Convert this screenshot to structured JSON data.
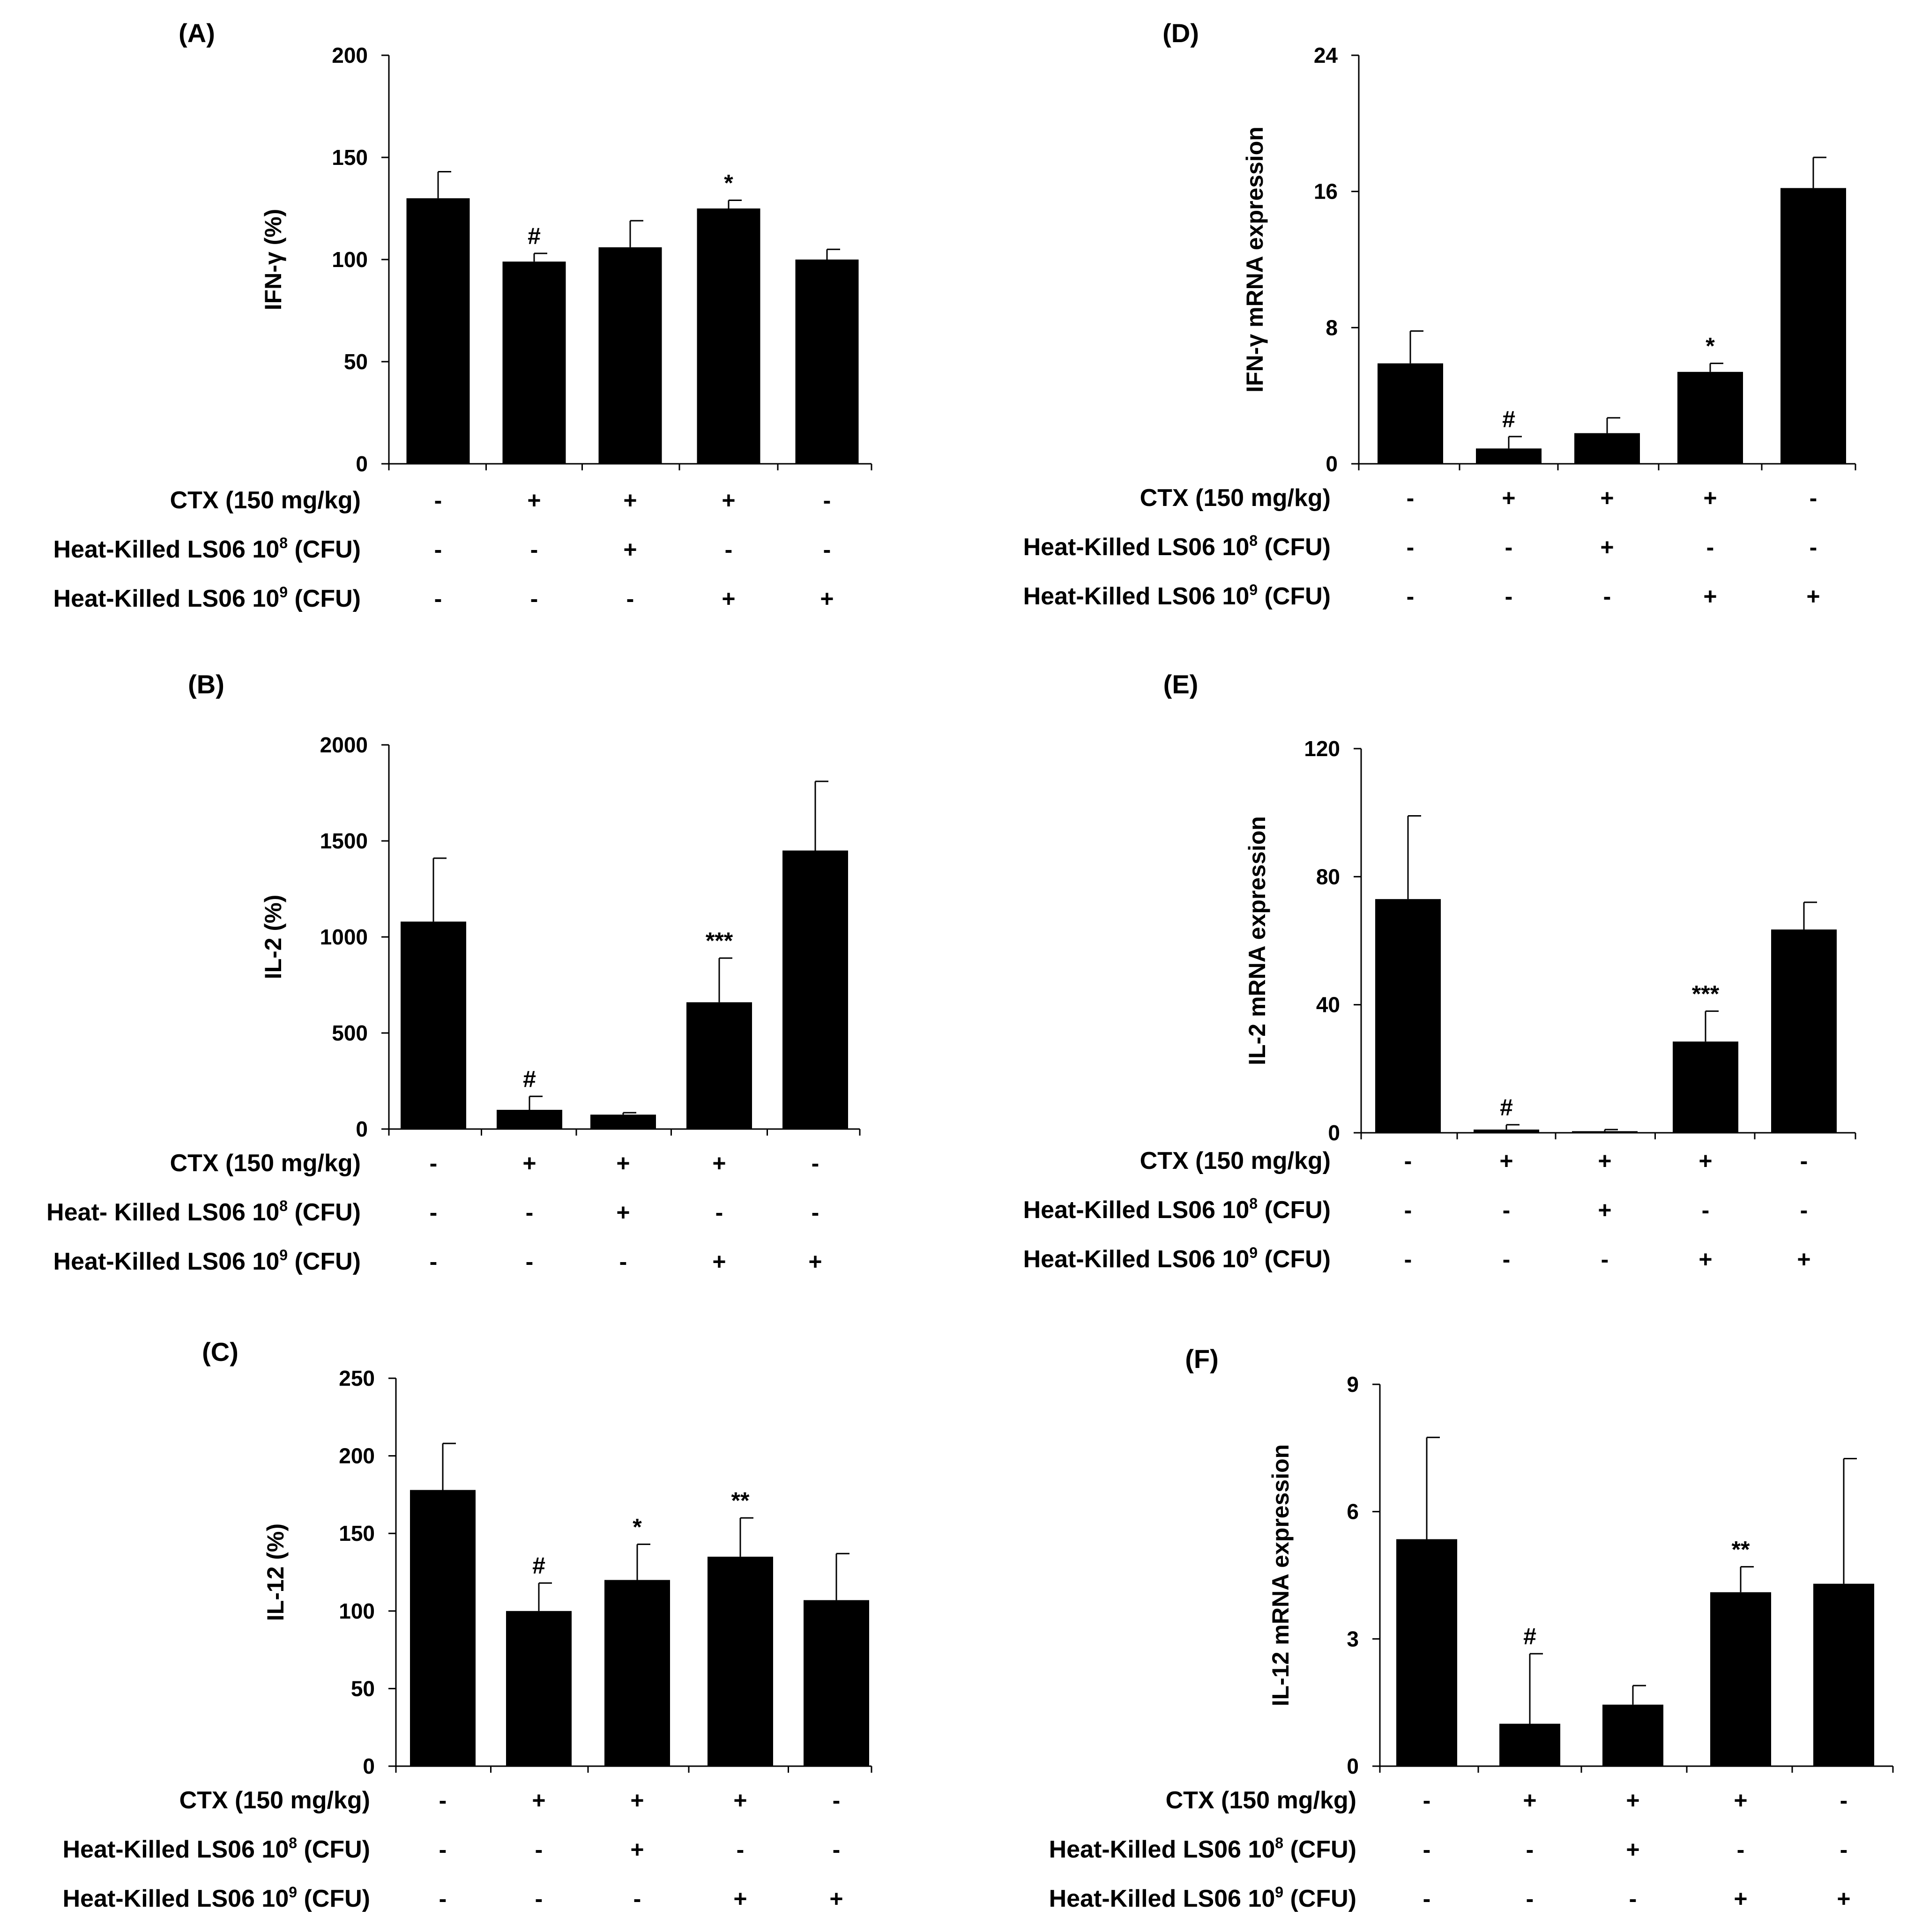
{
  "chart_data": [
    {
      "panel": "(A)",
      "type": "bar",
      "ylabel": "IFN-γ (%)",
      "ylim": [
        0,
        200
      ],
      "yticks": [
        "0",
        "50",
        "100",
        "150",
        "200"
      ],
      "values": [
        130,
        99,
        106,
        125,
        100
      ],
      "errors": [
        13,
        4,
        13,
        4,
        5
      ],
      "annotations": [
        "",
        "#",
        "",
        "*",
        ""
      ],
      "rows": [
        {
          "label": "CTX (150 mg/kg)",
          "sup": "",
          "label_end": "",
          "signs": [
            "-",
            "+",
            "+",
            "+",
            "-"
          ]
        },
        {
          "label": "Heat-Killed LS06 10",
          "sup": "8",
          "label_end": " (CFU)",
          "signs": [
            "-",
            "-",
            "+",
            "-",
            "-"
          ]
        },
        {
          "label": "Heat-Killed LS06 10",
          "sup": "9",
          "label_end": " (CFU)",
          "signs": [
            "-",
            "-",
            "-",
            "+",
            "+"
          ]
        }
      ]
    },
    {
      "panel": "(B)",
      "type": "bar",
      "ylabel": "IL-2 (%)",
      "ylim": [
        0,
        2000
      ],
      "yticks": [
        "0",
        "500",
        "1000",
        "1500",
        "2000"
      ],
      "values": [
        1080,
        100,
        75,
        660,
        1450
      ],
      "errors": [
        330,
        70,
        10,
        230,
        360
      ],
      "annotations": [
        "",
        "#",
        "",
        "***",
        ""
      ],
      "rows": [
        {
          "label": "CTX (150 mg/kg)",
          "sup": "",
          "label_end": "",
          "signs": [
            "-",
            "+",
            "+",
            "+",
            "-"
          ]
        },
        {
          "label": "Heat- Killed LS06 10",
          "sup": "8",
          "label_end": " (CFU)",
          "signs": [
            "-",
            "-",
            "+",
            "-",
            "-"
          ]
        },
        {
          "label": "Heat-Killed LS06 10",
          "sup": "9",
          "label_end": " (CFU)",
          "signs": [
            "-",
            "-",
            "-",
            "+",
            "+"
          ]
        }
      ]
    },
    {
      "panel": "(C)",
      "type": "bar",
      "ylabel": "IL-12 (%)",
      "ylim": [
        0,
        250
      ],
      "yticks": [
        "0",
        "50",
        "100",
        "150",
        "200",
        "250"
      ],
      "values": [
        178,
        100,
        120,
        135,
        107
      ],
      "errors": [
        30,
        18,
        23,
        25,
        30
      ],
      "annotations": [
        "",
        "#",
        "*",
        "**",
        ""
      ],
      "rows": [
        {
          "label": "CTX (150 mg/kg)",
          "sup": "",
          "label_end": "",
          "signs": [
            "-",
            "+",
            "+",
            "+",
            "-"
          ]
        },
        {
          "label": "Heat-Killed LS06 10",
          "sup": "8",
          "label_end": " (CFU)",
          "signs": [
            "-",
            "-",
            "+",
            "-",
            "-"
          ]
        },
        {
          "label": "Heat-Killed LS06 10",
          "sup": "9",
          "label_end": " (CFU)",
          "signs": [
            "-",
            "-",
            "-",
            "+",
            "+"
          ]
        }
      ]
    },
    {
      "panel": "(D)",
      "type": "bar",
      "ylabel": "IFN-γ mRNA expression",
      "ylim": [
        0,
        24
      ],
      "yticks": [
        "0",
        "8",
        "16",
        "24"
      ],
      "values": [
        5.9,
        0.9,
        1.8,
        5.4,
        16.2
      ],
      "errors": [
        1.9,
        0.7,
        0.9,
        0.5,
        1.8
      ],
      "annotations": [
        "",
        "#",
        "",
        "*",
        ""
      ],
      "rows": [
        {
          "label": "CTX (150 mg/kg)",
          "sup": "",
          "label_end": "",
          "signs": [
            "-",
            "+",
            "+",
            "+",
            "-"
          ]
        },
        {
          "label": "Heat-Killed LS06 10",
          "sup": "8",
          "label_end": " (CFU)",
          "signs": [
            "-",
            "-",
            "+",
            "-",
            "-"
          ]
        },
        {
          "label": "Heat-Killed LS06 10",
          "sup": "9",
          "label_end": " (CFU)",
          "signs": [
            "-",
            "-",
            "-",
            "+",
            "+"
          ]
        }
      ]
    },
    {
      "panel": "(E)",
      "type": "bar",
      "ylabel": "IL-2 mRNA expression",
      "ylim": [
        0,
        120
      ],
      "yticks": [
        "0",
        "40",
        "80",
        "120"
      ],
      "values": [
        73,
        1,
        0.5,
        28.5,
        63.5
      ],
      "errors": [
        26,
        1.5,
        0.5,
        9.5,
        8.5
      ],
      "annotations": [
        "",
        "#",
        "",
        "***",
        ""
      ],
      "rows": [
        {
          "label": "CTX (150 mg/kg)",
          "sup": "",
          "label_end": "",
          "signs": [
            "-",
            "+",
            "+",
            "+",
            "-"
          ]
        },
        {
          "label": "Heat-Killed LS06 10",
          "sup": "8",
          "label_end": " (CFU)",
          "signs": [
            "-",
            "-",
            "+",
            "-",
            "-"
          ]
        },
        {
          "label": "Heat-Killed LS06 10",
          "sup": "9",
          "label_end": " (CFU)",
          "signs": [
            "-",
            "-",
            "-",
            "+",
            "+"
          ]
        }
      ]
    },
    {
      "panel": "(F)",
      "type": "bar",
      "ylabel": "IL-12 mRNA expression",
      "ylim": [
        0,
        9
      ],
      "yticks": [
        "0",
        "3",
        "6",
        "9"
      ],
      "values": [
        5.35,
        1.0,
        1.45,
        4.1,
        4.3
      ],
      "errors": [
        2.4,
        1.65,
        0.45,
        0.6,
        2.95
      ],
      "annotations": [
        "",
        "#",
        "",
        "**",
        ""
      ],
      "rows": [
        {
          "label": "CTX (150 mg/kg)",
          "sup": "",
          "label_end": "",
          "signs": [
            "-",
            "+",
            "+",
            "+",
            "-"
          ]
        },
        {
          "label": "Heat-Killed LS06 10",
          "sup": "8",
          "label_end": " (CFU)",
          "signs": [
            "-",
            "-",
            "+",
            "-",
            "-"
          ]
        },
        {
          "label": "Heat-Killed LS06 10",
          "sup": "9",
          "label_end": " (CFU)",
          "signs": [
            "-",
            "-",
            "-",
            "+",
            "+"
          ]
        }
      ]
    }
  ]
}
